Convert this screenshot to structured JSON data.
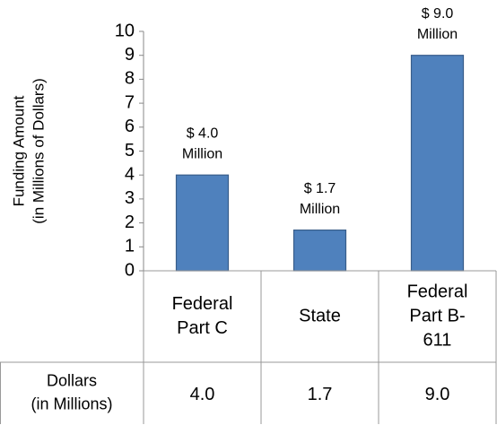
{
  "chart_data": {
    "type": "bar",
    "y_label": [
      "Funding Amount",
      "(in Millions of Dollars)"
    ],
    "categories": [
      [
        "Federal",
        "Part C"
      ],
      [
        "State"
      ],
      [
        "Federal",
        "Part B-",
        "611"
      ]
    ],
    "values": [
      4.0,
      1.7,
      9.0
    ],
    "value_labels": [
      [
        "$ 4.0",
        "Million"
      ],
      [
        "$ 1.7",
        "Million"
      ],
      [
        "$ 9.0",
        "Million"
      ]
    ],
    "color": "#4f81bd",
    "ylim": [
      0,
      10
    ],
    "yticks": [
      0,
      1,
      2,
      3,
      4,
      5,
      6,
      7,
      8,
      9,
      10
    ],
    "grid": false,
    "table": {
      "row_label": [
        "Dollars",
        "(in Millions)"
      ],
      "cells": [
        "4.0",
        "1.7",
        "9.0"
      ]
    }
  }
}
